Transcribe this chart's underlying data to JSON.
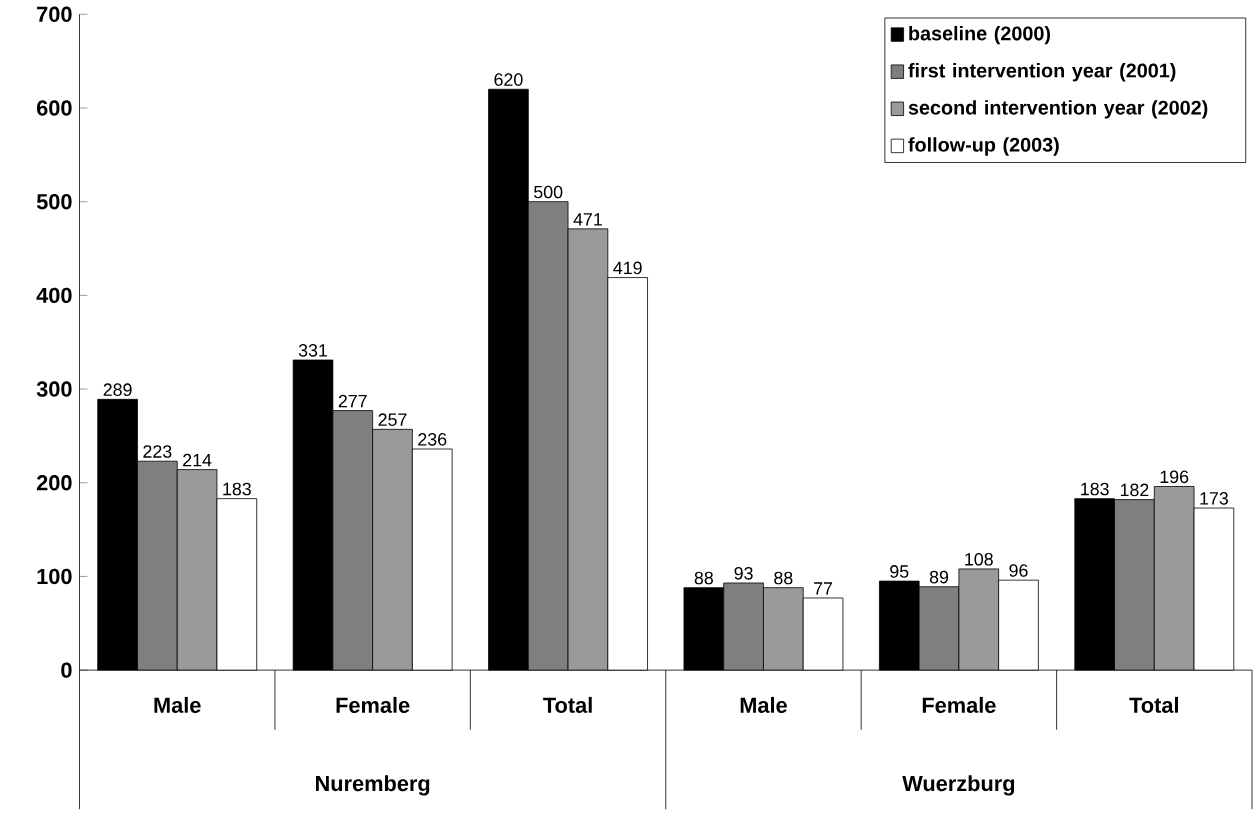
{
  "chart_data": {
    "type": "bar",
    "categories": [
      "Male",
      "Female",
      "Total",
      "Male",
      "Female",
      "Total"
    ],
    "series": [
      {
        "name": "baseline (2000)",
        "color": "#000000",
        "values": [
          289,
          331,
          620,
          88,
          95,
          183
        ]
      },
      {
        "name": "first intervention year (2001)",
        "color": "#7f7f7f",
        "values": [
          223,
          277,
          500,
          93,
          89,
          182
        ]
      },
      {
        "name": "second intervention year (2002)",
        "color": "#9a9a9a",
        "values": [
          214,
          257,
          471,
          88,
          108,
          196
        ]
      },
      {
        "name": "follow-up (2003)",
        "color": "#ffffff",
        "values": [
          183,
          236,
          419,
          77,
          96,
          173
        ]
      }
    ],
    "annotations": [
      "Nuremberg",
      "Wuerzburg"
    ],
    "ylim": [
      0,
      700
    ],
    "yticks": [
      0,
      100,
      200,
      300,
      400,
      500,
      600,
      700
    ],
    "data_labels": true,
    "legend": "top right",
    "grid": false
  }
}
